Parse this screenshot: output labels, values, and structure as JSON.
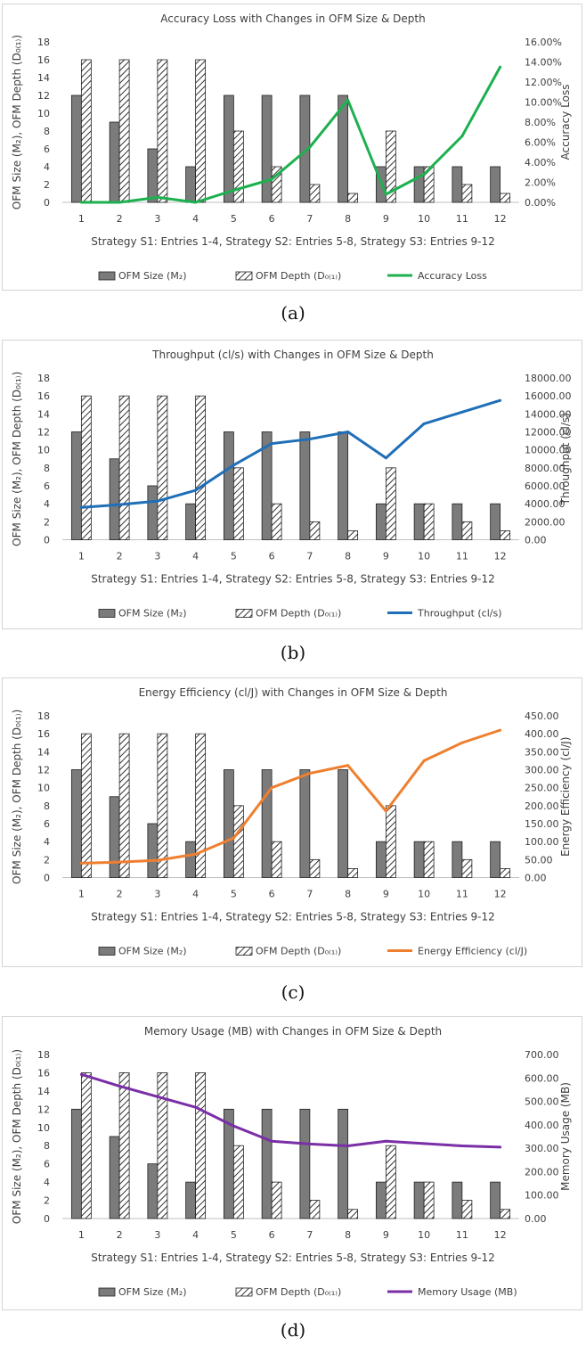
{
  "colors": {
    "size_bar": "#7b7b7b",
    "accuracy": "#1db04f",
    "throughput": "#1f6fb8",
    "energy": "#ef7f2f",
    "memory": "#7a2fa6"
  },
  "chart_data": [
    {
      "type": "bar+line",
      "title": "Accuracy Loss with Changes in OFM Size & Depth",
      "xlabel": "Strategy S1: Entries 1-4, Strategy S2: Entries 5-8, Strategy S3: Entries 9-12",
      "ylabel_left": "OFM Size (M₂), OFM Depth (D₀₍₁₎)",
      "ylabel_right": "Accuracy Loss",
      "categories": [
        "1",
        "2",
        "3",
        "4",
        "5",
        "6",
        "7",
        "8",
        "9",
        "10",
        "11",
        "12"
      ],
      "ylim_left": [
        0,
        18
      ],
      "yticks_left": [
        "0",
        "2",
        "4",
        "6",
        "8",
        "10",
        "12",
        "14",
        "16",
        "18"
      ],
      "ylim_right": [
        0,
        16
      ],
      "yticks_right": [
        "0.00%",
        "2.00%",
        "4.00%",
        "6.00%",
        "8.00%",
        "10.00%",
        "12.00%",
        "14.00%",
        "16.00%"
      ],
      "series": [
        {
          "name": "OFM Size (M₂)",
          "kind": "bar",
          "values": [
            12,
            9,
            6,
            4,
            12,
            12,
            12,
            12,
            4,
            4,
            4,
            4
          ]
        },
        {
          "name": "OFM Depth (D₀₍₁₎)",
          "kind": "bar-hatched",
          "values": [
            16,
            16,
            16,
            16,
            8,
            4,
            2,
            1,
            8,
            4,
            2,
            1
          ]
        },
        {
          "name": "Accuracy Loss",
          "kind": "line",
          "values": [
            0.0,
            0.0,
            0.5,
            0.0,
            1.2,
            2.3,
            5.5,
            10.2,
            0.8,
            2.8,
            6.6,
            13.5
          ]
        }
      ],
      "legend_position": "bottom",
      "caption": "(a)"
    },
    {
      "type": "bar+line",
      "title": "Throughput (cl/s) with Changes in OFM Size & Depth",
      "xlabel": "Strategy S1: Entries 1-4, Strategy S2: Entries 5-8, Strategy S3: Entries 9-12",
      "ylabel_left": "OFM Size (M₂), OFM Depth (D₀₍₁₎)",
      "ylabel_right": "Throughput (cl/s)",
      "categories": [
        "1",
        "2",
        "3",
        "4",
        "5",
        "6",
        "7",
        "8",
        "9",
        "10",
        "11",
        "12"
      ],
      "ylim_left": [
        0,
        18
      ],
      "yticks_left": [
        "0",
        "2",
        "4",
        "6",
        "8",
        "10",
        "12",
        "14",
        "16",
        "18"
      ],
      "ylim_right": [
        0,
        18000
      ],
      "yticks_right": [
        "0.00",
        "2000.00",
        "4000.00",
        "6000.00",
        "8000.00",
        "10000.00",
        "12000.00",
        "14000.00",
        "16000.00",
        "18000.00"
      ],
      "series": [
        {
          "name": "OFM Size (M₂)",
          "kind": "bar",
          "values": [
            12,
            9,
            6,
            4,
            12,
            12,
            12,
            12,
            4,
            4,
            4,
            4
          ]
        },
        {
          "name": "OFM Depth (D₀₍₁₎)",
          "kind": "bar-hatched",
          "values": [
            16,
            16,
            16,
            16,
            8,
            4,
            2,
            1,
            8,
            4,
            2,
            1
          ]
        },
        {
          "name": "Throughput (cl/s)",
          "kind": "line",
          "values": [
            3600,
            3900,
            4300,
            5500,
            8300,
            10700,
            11200,
            12000,
            9100,
            12900,
            14200,
            15500
          ]
        }
      ],
      "legend_position": "bottom",
      "caption": "(b)"
    },
    {
      "type": "bar+line",
      "title": "Energy Efficiency (cl/J) with Changes in OFM Size & Depth",
      "xlabel": "Strategy S1: Entries 1-4, Strategy S2: Entries 5-8, Strategy S3: Entries 9-12",
      "ylabel_left": "OFM Size (M₂), OFM Depth (D₀₍₁₎)",
      "ylabel_right": "Energy Efficiency (cl/J)",
      "categories": [
        "1",
        "2",
        "3",
        "4",
        "5",
        "6",
        "7",
        "8",
        "9",
        "10",
        "11",
        "12"
      ],
      "ylim_left": [
        0,
        18
      ],
      "yticks_left": [
        "0",
        "2",
        "4",
        "6",
        "8",
        "10",
        "12",
        "14",
        "16",
        "18"
      ],
      "ylim_right": [
        0,
        450
      ],
      "yticks_right": [
        "0.00",
        "50.00",
        "100.00",
        "150.00",
        "200.00",
        "250.00",
        "300.00",
        "350.00",
        "400.00",
        "450.00"
      ],
      "series": [
        {
          "name": "OFM Size (M₂)",
          "kind": "bar",
          "values": [
            12,
            9,
            6,
            4,
            12,
            12,
            12,
            12,
            4,
            4,
            4,
            4
          ]
        },
        {
          "name": "OFM Depth (D₀₍₁₎)",
          "kind": "bar-hatched",
          "values": [
            16,
            16,
            16,
            16,
            8,
            4,
            2,
            1,
            8,
            4,
            2,
            1
          ]
        },
        {
          "name": "Energy Efficiency (cl/J)",
          "kind": "line",
          "values": [
            40,
            43,
            48,
            65,
            110,
            250,
            290,
            312,
            185,
            325,
            375,
            410
          ]
        }
      ],
      "legend_position": "bottom",
      "caption": "(c)"
    },
    {
      "type": "bar+line",
      "title": "Memory Usage (MB) with Changes in OFM Size & Depth",
      "xlabel": "Strategy S1: Entries 1-4, Strategy S2: Entries 5-8, Strategy S3: Entries 9-12",
      "ylabel_left": "OFM Size (M₂), OFM Depth (D₀₍₁₎)",
      "ylabel_right": "Memory Usage (MB)",
      "categories": [
        "1",
        "2",
        "3",
        "4",
        "5",
        "6",
        "7",
        "8",
        "9",
        "10",
        "11",
        "12"
      ],
      "ylim_left": [
        0,
        18
      ],
      "yticks_left": [
        "0",
        "2",
        "4",
        "6",
        "8",
        "10",
        "12",
        "14",
        "16",
        "18"
      ],
      "ylim_right": [
        0,
        700
      ],
      "yticks_right": [
        "0.00",
        "100.00",
        "200.00",
        "300.00",
        "400.00",
        "500.00",
        "600.00",
        "700.00"
      ],
      "series": [
        {
          "name": "OFM Size (M₂)",
          "kind": "bar",
          "values": [
            12,
            9,
            6,
            4,
            12,
            12,
            12,
            12,
            4,
            4,
            4,
            4
          ]
        },
        {
          "name": "OFM Depth (D₀₍₁₎)",
          "kind": "bar-hatched",
          "values": [
            16,
            16,
            16,
            16,
            8,
            4,
            2,
            1,
            8,
            4,
            2,
            1
          ]
        },
        {
          "name": "Memory Usage (MB)",
          "kind": "line",
          "values": [
            615,
            565,
            520,
            475,
            395,
            330,
            318,
            310,
            330,
            320,
            310,
            305
          ]
        }
      ],
      "legend_position": "bottom",
      "caption": "(d)"
    }
  ]
}
